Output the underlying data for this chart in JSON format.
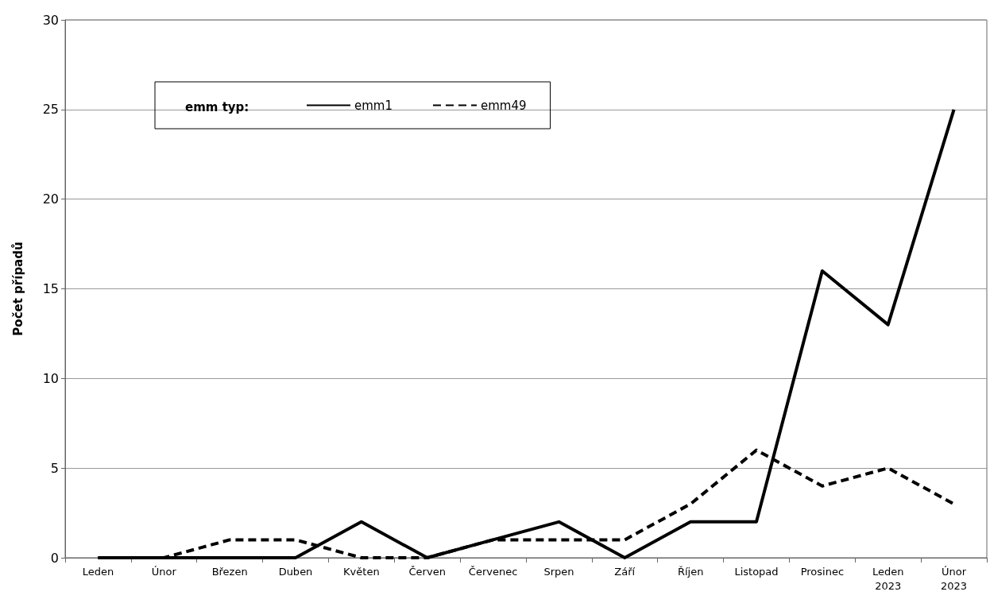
{
  "chart_data": {
    "type": "line",
    "ylabel": "Počet případů",
    "legend_title": "emm typ:",
    "categories": [
      "Leden",
      "Únor",
      "Březen",
      "Duben",
      "Květen",
      "Červen",
      "Červenec",
      "Srpen",
      "Září",
      "Říjen",
      "Listopad",
      "Prosinec",
      "Leden 2023",
      "Únor 2023"
    ],
    "series": [
      {
        "name": "emm1",
        "color": "#000000",
        "line_style": "solid",
        "values": [
          0,
          0,
          0,
          0,
          2,
          0,
          1,
          2,
          0,
          2,
          2,
          16,
          13,
          25
        ]
      },
      {
        "name": "emm49",
        "color": "#000000",
        "line_style": "dashed",
        "values": [
          0,
          0,
          1,
          1,
          0,
          0,
          1,
          1,
          1,
          3,
          6,
          4,
          5,
          3
        ]
      }
    ],
    "ylim": [
      0,
      30
    ],
    "yticks": [
      0,
      5,
      10,
      15,
      20,
      25,
      30
    ],
    "grid": "y",
    "legend": "top left",
    "marker": "none"
  }
}
